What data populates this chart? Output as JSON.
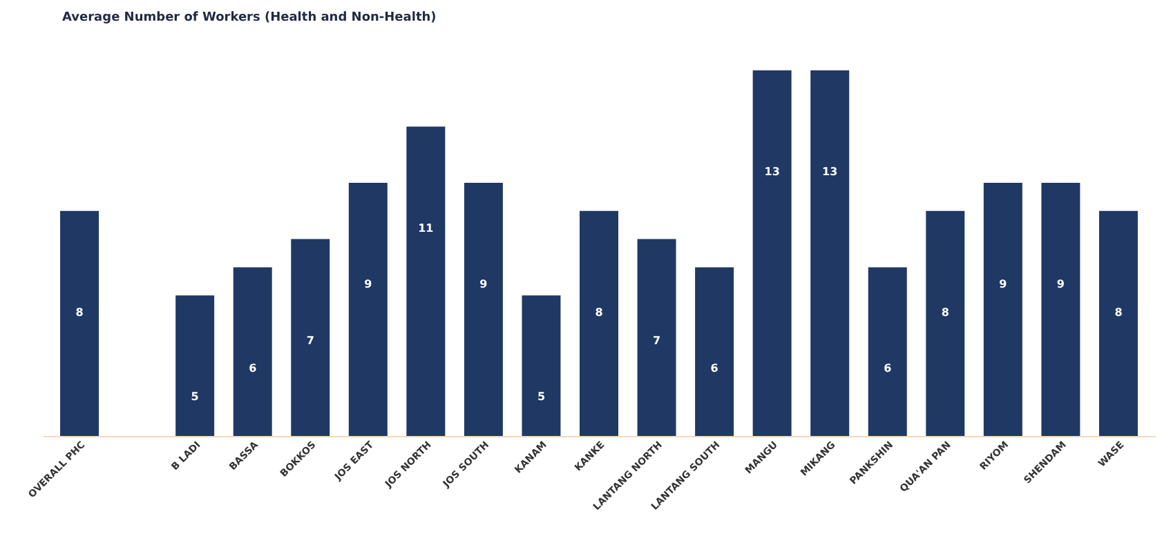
{
  "chart_data": {
    "type": "bar",
    "title": "Average Number of Workers (Health and Non-Health)",
    "categories": [
      "OVERALL PHC",
      null,
      "B LADI",
      "BASSA",
      "BOKKOS",
      "JOS EAST",
      "JOS NORTH",
      "JOS SOUTH",
      "KANAM",
      "KANKE",
      "LANTANG NORTH",
      "LANTANG SOUTH",
      "MANGU",
      "MIKANG",
      "PANKSHIN",
      "QUA'AN PAN",
      "RIYOM",
      "SHENDAM",
      "WASE"
    ],
    "values": [
      8,
      null,
      5,
      6,
      7,
      9,
      11,
      9,
      5,
      8,
      7,
      6,
      13,
      13,
      6,
      8,
      9,
      9,
      8
    ],
    "color": "#203864",
    "data_labels": true
  }
}
